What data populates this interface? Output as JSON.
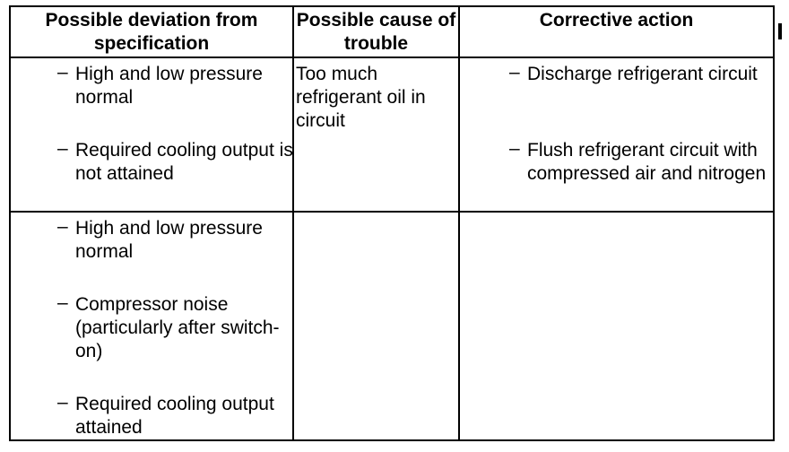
{
  "table": {
    "headers": [
      "Possible deviation from specification",
      "Possible cause of trouble",
      "Corrective action"
    ],
    "rows": [
      {
        "deviation": [
          "High and low pressure normal",
          "Required cooling output is not attained"
        ],
        "cause": "Too much refrigerant oil in circuit",
        "action": [
          "Discharge refrigerant circuit",
          "Flush refrigerant circuit with compressed air and nitrogen"
        ]
      },
      {
        "deviation": [
          "High and low pressure normal",
          "Compressor noise (particularly after switch-on)",
          "Required cooling output attained"
        ]
      }
    ]
  }
}
